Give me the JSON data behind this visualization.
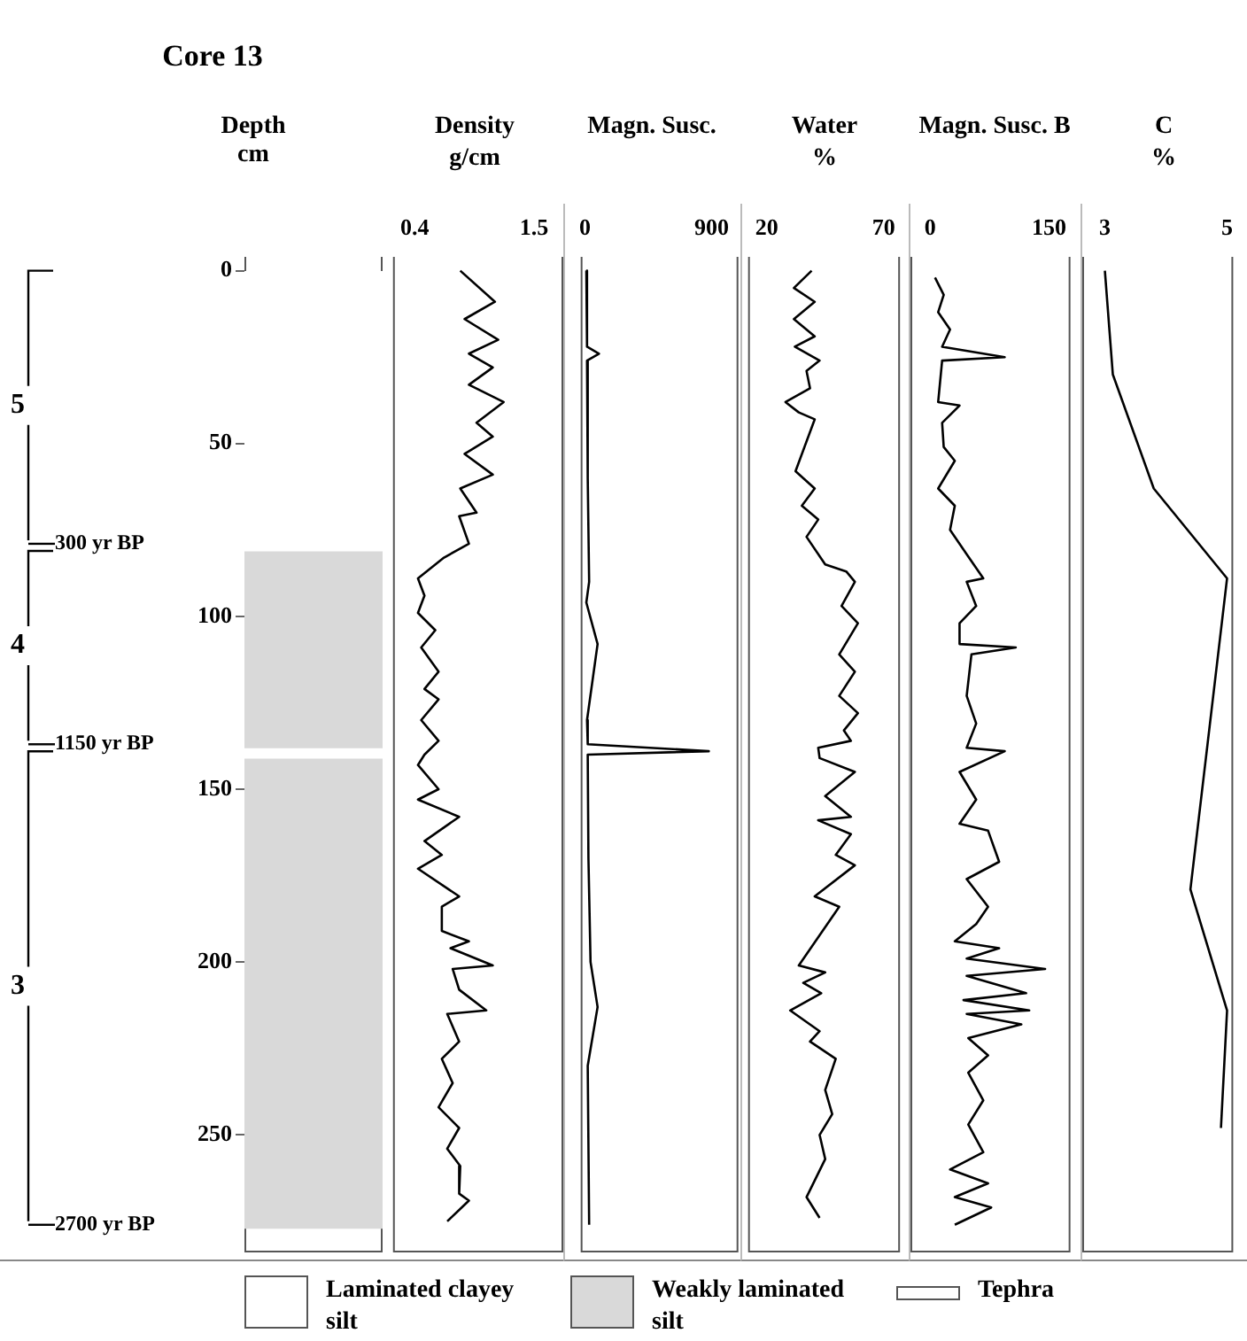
{
  "chart_data": [
    {
      "type": "bar",
      "title": "Core 13",
      "ylabel": "Depth cm",
      "stacked": true,
      "categories": [
        null
      ],
      "legend": "bottom",
      "tick_labels": "y",
      "series": [
        {
          "name": "Laminated clayey silt",
          "color": "#ffffff",
          "values": [
            81
          ]
        },
        {
          "name": "Weakly laminated silt",
          "color": "#d9d9d9",
          "values": [
            57
          ]
        },
        {
          "name": "Tephra",
          "color": "#ffffff",
          "values": [
            3
          ]
        },
        {
          "color": "#d9d9d9",
          "values": [
            136
          ]
        }
      ],
      "ylim": [
        284,
        -4
      ],
      "yticks": [
        0,
        50,
        100,
        150,
        200,
        250
      ],
      "annotations": [
        "5",
        "4",
        "3"
      ],
      "ref_lines": [
        {
          "axis": "y",
          "value": 79,
          "label": "300 yr BP"
        },
        {
          "axis": "y",
          "value": 137,
          "label": "1150 yr BP"
        },
        {
          "axis": "y",
          "value": 276,
          "label": "2700 yr BP"
        }
      ]
    },
    {
      "type": "line",
      "title": "Density",
      "subtitle": "g/cm",
      "marker": "none",
      "tick_labels": "x",
      "series": [
        {
          "color": "#000000",
          "x": [
            0.82,
            1.14,
            0.86,
            1.17,
            0.9,
            1.12,
            0.9,
            1.22,
            0.97,
            1.12,
            0.86,
            1.12,
            0.82,
            0.97,
            0.81,
            0.9,
            0.67,
            0.43,
            0.49,
            0.43,
            0.59,
            0.46,
            0.62,
            0.49,
            0.62,
            0.46,
            0.62,
            0.49,
            0.43,
            0.62,
            0.43,
            0.81,
            0.49,
            0.65,
            0.43,
            0.81,
            0.65,
            0.65,
            0.9,
            0.73,
            1.12,
            0.75,
            0.81,
            1.06,
            0.7,
            0.81,
            0.65,
            0.75,
            0.62,
            0.81,
            0.7,
            0.82,
            0.81,
            0.9,
            0.7
          ],
          "values": [
            0,
            9,
            14,
            20,
            24,
            28,
            33,
            38,
            44,
            48,
            53,
            59,
            63,
            70,
            71,
            79,
            83,
            89,
            94,
            99,
            104,
            109,
            116,
            121,
            124,
            130,
            136,
            140,
            143,
            150,
            153,
            158,
            165,
            169,
            173,
            181,
            184,
            191,
            194,
            196,
            201,
            202,
            208,
            214,
            215,
            223,
            228,
            235,
            242,
            248,
            254,
            259,
            267,
            269,
            275
          ]
        }
      ],
      "xlim": [
        0.2,
        1.77
      ],
      "xticks": [
        0.4,
        1.5
      ],
      "ylim": [
        284,
        -4
      ]
    },
    {
      "type": "line",
      "title": "Magn. Susc.",
      "marker": "none",
      "tick_labels": "x",
      "series": [
        {
          "color": "#000000",
          "x": [
            10,
            15,
            100,
            15,
            20,
            30,
            10,
            90,
            15,
            20,
            880,
            20,
            25,
            40,
            90,
            20,
            30
          ],
          "values": [
            0,
            22,
            24,
            26,
            60,
            90,
            96,
            108,
            130,
            137,
            139,
            140,
            170,
            200,
            213,
            230,
            276
          ]
        }
      ],
      "xlim": [
        -30,
        1090
      ],
      "xticks": [
        0,
        900
      ],
      "ylim": [
        284,
        -4
      ]
    },
    {
      "type": "line",
      "title": "Water",
      "subtitle": "%",
      "marker": "none",
      "tick_labels": "x",
      "series": [
        {
          "color": "#000000",
          "x": [
            39.2,
            31.6,
            40.5,
            31.6,
            40.5,
            32,
            42.6,
            37,
            38.5,
            28,
            33.7,
            40.5,
            32.3,
            40.5,
            35,
            42,
            37,
            45,
            54,
            57.7,
            52,
            59,
            51,
            57.7,
            51,
            59,
            53,
            56,
            42,
            42.6,
            57.7,
            45,
            56,
            42,
            56,
            49.5,
            57.7,
            40.5,
            51,
            33.7,
            45,
            35.6,
            43.3,
            30,
            42.6,
            38.5,
            49.5,
            45,
            48,
            42.6,
            45,
            37,
            42.6
          ],
          "values": [
            0,
            5,
            9,
            14,
            19,
            22,
            26,
            29,
            34,
            38,
            41,
            43,
            58,
            63,
            68,
            72,
            77,
            85,
            87,
            90,
            97,
            102,
            111,
            116,
            123,
            128,
            133,
            136,
            138,
            141,
            145,
            152,
            158,
            159,
            163,
            169,
            172,
            181,
            184,
            201,
            203,
            206,
            209,
            214,
            220,
            223,
            228,
            237,
            244,
            250,
            257,
            268,
            274
          ]
        }
      ],
      "xlim": [
        12,
        77
      ],
      "xticks": [
        20,
        70
      ],
      "ylim": [
        284,
        -4
      ]
    },
    {
      "type": "line",
      "title": "Magn. Susc. B",
      "marker": "none",
      "tick_labels": "x",
      "series": [
        {
          "color": "#000000",
          "x": [
            6,
            17,
            10,
            25,
            15,
            94,
            15,
            10,
            37,
            15,
            17,
            31,
            10,
            31,
            25,
            46,
            67,
            46,
            58,
            37,
            37,
            108,
            52,
            46,
            58,
            46,
            94,
            37,
            58,
            37,
            73,
            87,
            46,
            73,
            58,
            31,
            87,
            46,
            145,
            46,
            121,
            42,
            125,
            46,
            115,
            48,
            73,
            48,
            67,
            48,
            67,
            25,
            73,
            31,
            77,
            31
          ],
          "values": [
            2,
            7,
            12,
            17,
            22,
            25,
            26,
            38,
            39,
            44,
            51,
            55,
            63,
            68,
            75,
            82,
            89,
            90,
            97,
            102,
            108,
            109,
            111,
            123,
            131,
            138,
            139,
            145,
            153,
            160,
            162,
            171,
            176,
            184,
            189,
            194,
            196,
            199,
            202,
            204,
            209,
            211,
            214,
            215,
            218,
            222,
            227,
            232,
            240,
            247,
            255,
            260,
            264,
            268,
            271,
            276
          ]
        }
      ],
      "xlim": [
        -25,
        177
      ],
      "xticks": [
        0,
        150
      ],
      "ylim": [
        284,
        -4
      ]
    },
    {
      "type": "line",
      "title": "C",
      "subtitle": "%",
      "marker": "none",
      "tick_labels": "x",
      "series": [
        {
          "color": "#000000",
          "x": [
            3,
            3.13,
            3.8,
            5,
            4.4,
            5,
            4.9
          ],
          "values": [
            0,
            30,
            63,
            89,
            179,
            214,
            248
          ]
        }
      ],
      "xlim": [
        2.63,
        5.1
      ],
      "xticks": [
        3,
        5
      ],
      "ylim": [
        284,
        -4
      ]
    }
  ]
}
